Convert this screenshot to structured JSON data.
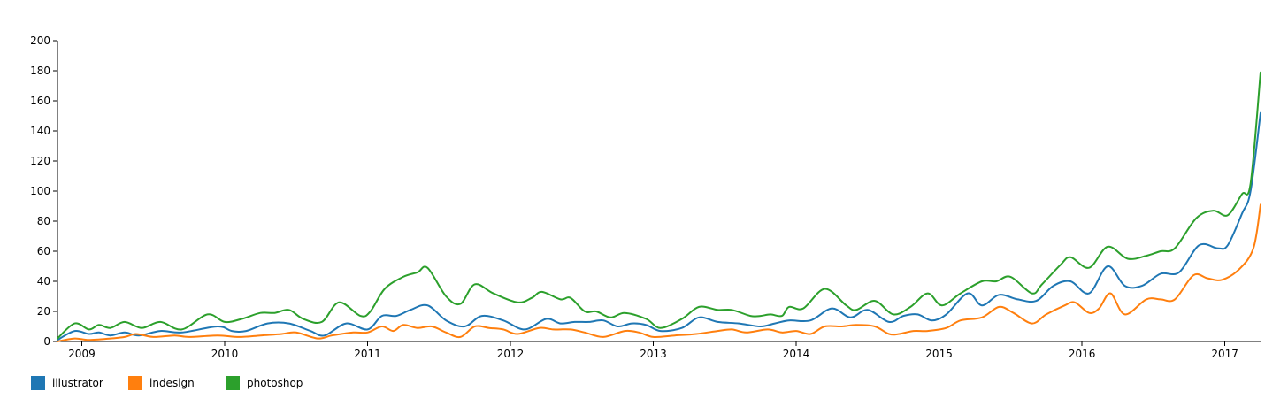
{
  "chart_data": {
    "type": "line",
    "x_unit": "year",
    "x_range": [
      2008.83,
      2017.25
    ],
    "ylim": [
      0,
      200
    ],
    "yticks": [
      0,
      20,
      40,
      60,
      80,
      100,
      120,
      140,
      160,
      180,
      200
    ],
    "xticks": [
      2009,
      2010,
      2011,
      2012,
      2013,
      2014,
      2015,
      2016,
      2017
    ],
    "xtick_labels": [
      "2009",
      "2010",
      "2011",
      "2012",
      "2013",
      "2014",
      "2015",
      "2016",
      "2017"
    ],
    "legend_position": "bottom-left",
    "grid": false,
    "series": [
      {
        "name": "illustrator",
        "color": "#1f77b4",
        "points": [
          [
            2008.83,
            1
          ],
          [
            2008.95,
            7
          ],
          [
            2009.05,
            5
          ],
          [
            2009.12,
            6
          ],
          [
            2009.2,
            4
          ],
          [
            2009.3,
            6
          ],
          [
            2009.4,
            4
          ],
          [
            2009.55,
            7
          ],
          [
            2009.7,
            6
          ],
          [
            2009.95,
            10
          ],
          [
            2010.05,
            7
          ],
          [
            2010.15,
            7
          ],
          [
            2010.3,
            12
          ],
          [
            2010.45,
            12
          ],
          [
            2010.6,
            7
          ],
          [
            2010.7,
            4
          ],
          [
            2010.85,
            12
          ],
          [
            2011.0,
            8
          ],
          [
            2011.1,
            17
          ],
          [
            2011.2,
            17
          ],
          [
            2011.3,
            21
          ],
          [
            2011.42,
            24
          ],
          [
            2011.55,
            14
          ],
          [
            2011.68,
            10
          ],
          [
            2011.8,
            17
          ],
          [
            2011.95,
            14
          ],
          [
            2012.1,
            8
          ],
          [
            2012.25,
            15
          ],
          [
            2012.35,
            12
          ],
          [
            2012.45,
            13
          ],
          [
            2012.55,
            13
          ],
          [
            2012.65,
            14
          ],
          [
            2012.75,
            10
          ],
          [
            2012.85,
            12
          ],
          [
            2012.95,
            11
          ],
          [
            2013.05,
            7
          ],
          [
            2013.2,
            9
          ],
          [
            2013.32,
            16
          ],
          [
            2013.45,
            13
          ],
          [
            2013.6,
            12
          ],
          [
            2013.75,
            10
          ],
          [
            2013.85,
            12
          ],
          [
            2013.95,
            14
          ],
          [
            2014.1,
            14
          ],
          [
            2014.25,
            22
          ],
          [
            2014.38,
            16
          ],
          [
            2014.5,
            21
          ],
          [
            2014.65,
            13
          ],
          [
            2014.75,
            17
          ],
          [
            2014.85,
            18
          ],
          [
            2014.95,
            14
          ],
          [
            2015.05,
            18
          ],
          [
            2015.2,
            32
          ],
          [
            2015.3,
            24
          ],
          [
            2015.42,
            31
          ],
          [
            2015.55,
            28
          ],
          [
            2015.68,
            27
          ],
          [
            2015.8,
            37
          ],
          [
            2015.92,
            40
          ],
          [
            2016.05,
            32
          ],
          [
            2016.18,
            50
          ],
          [
            2016.3,
            37
          ],
          [
            2016.42,
            37
          ],
          [
            2016.55,
            45
          ],
          [
            2016.68,
            46
          ],
          [
            2016.82,
            64
          ],
          [
            2016.95,
            62
          ],
          [
            2017.02,
            64
          ],
          [
            2017.12,
            85
          ],
          [
            2017.18,
            100
          ],
          [
            2017.25,
            152
          ]
        ]
      },
      {
        "name": "indesign",
        "color": "#ff7f0e",
        "points": [
          [
            2008.83,
            0
          ],
          [
            2008.95,
            2
          ],
          [
            2009.05,
            1
          ],
          [
            2009.2,
            2
          ],
          [
            2009.3,
            3
          ],
          [
            2009.38,
            5
          ],
          [
            2009.5,
            3
          ],
          [
            2009.65,
            4
          ],
          [
            2009.75,
            3
          ],
          [
            2009.95,
            4
          ],
          [
            2010.1,
            3
          ],
          [
            2010.25,
            4
          ],
          [
            2010.4,
            5
          ],
          [
            2010.5,
            6
          ],
          [
            2010.65,
            2
          ],
          [
            2010.75,
            4
          ],
          [
            2010.9,
            6
          ],
          [
            2011.0,
            6
          ],
          [
            2011.1,
            10
          ],
          [
            2011.18,
            7
          ],
          [
            2011.25,
            11
          ],
          [
            2011.35,
            9
          ],
          [
            2011.45,
            10
          ],
          [
            2011.55,
            6
          ],
          [
            2011.65,
            3
          ],
          [
            2011.75,
            10
          ],
          [
            2011.85,
            9
          ],
          [
            2011.95,
            8
          ],
          [
            2012.05,
            5
          ],
          [
            2012.2,
            9
          ],
          [
            2012.3,
            8
          ],
          [
            2012.42,
            8
          ],
          [
            2012.52,
            6
          ],
          [
            2012.65,
            3
          ],
          [
            2012.8,
            7
          ],
          [
            2012.9,
            6
          ],
          [
            2013.0,
            3
          ],
          [
            2013.15,
            4
          ],
          [
            2013.3,
            5
          ],
          [
            2013.45,
            7
          ],
          [
            2013.55,
            8
          ],
          [
            2013.65,
            6
          ],
          [
            2013.8,
            8
          ],
          [
            2013.9,
            6
          ],
          [
            2014.0,
            7
          ],
          [
            2014.1,
            5
          ],
          [
            2014.2,
            10
          ],
          [
            2014.32,
            10
          ],
          [
            2014.42,
            11
          ],
          [
            2014.55,
            10
          ],
          [
            2014.65,
            5
          ],
          [
            2014.72,
            5
          ],
          [
            2014.82,
            7
          ],
          [
            2014.92,
            7
          ],
          [
            2015.05,
            9
          ],
          [
            2015.15,
            14
          ],
          [
            2015.3,
            16
          ],
          [
            2015.42,
            23
          ],
          [
            2015.52,
            19
          ],
          [
            2015.65,
            12
          ],
          [
            2015.75,
            18
          ],
          [
            2015.88,
            24
          ],
          [
            2015.95,
            26
          ],
          [
            2016.05,
            19
          ],
          [
            2016.12,
            22
          ],
          [
            2016.2,
            32
          ],
          [
            2016.3,
            18
          ],
          [
            2016.45,
            28
          ],
          [
            2016.55,
            28
          ],
          [
            2016.65,
            28
          ],
          [
            2016.78,
            44
          ],
          [
            2016.88,
            42
          ],
          [
            2016.98,
            41
          ],
          [
            2017.1,
            48
          ],
          [
            2017.2,
            62
          ],
          [
            2017.25,
            91
          ]
        ]
      },
      {
        "name": "photoshop",
        "color": "#2ca02c",
        "points": [
          [
            2008.83,
            2
          ],
          [
            2008.95,
            12
          ],
          [
            2009.05,
            8
          ],
          [
            2009.12,
            11
          ],
          [
            2009.2,
            9
          ],
          [
            2009.3,
            13
          ],
          [
            2009.42,
            9
          ],
          [
            2009.55,
            13
          ],
          [
            2009.7,
            8
          ],
          [
            2009.88,
            18
          ],
          [
            2010.0,
            13
          ],
          [
            2010.12,
            15
          ],
          [
            2010.25,
            19
          ],
          [
            2010.35,
            19
          ],
          [
            2010.45,
            21
          ],
          [
            2010.55,
            15
          ],
          [
            2010.68,
            13
          ],
          [
            2010.8,
            26
          ],
          [
            2010.95,
            17
          ],
          [
            2011.02,
            20
          ],
          [
            2011.12,
            35
          ],
          [
            2011.25,
            43
          ],
          [
            2011.35,
            46
          ],
          [
            2011.42,
            49
          ],
          [
            2011.55,
            30
          ],
          [
            2011.65,
            25
          ],
          [
            2011.75,
            38
          ],
          [
            2011.88,
            32
          ],
          [
            2012.05,
            26
          ],
          [
            2012.15,
            29
          ],
          [
            2012.22,
            33
          ],
          [
            2012.35,
            28
          ],
          [
            2012.42,
            29
          ],
          [
            2012.52,
            20
          ],
          [
            2012.6,
            20
          ],
          [
            2012.7,
            16
          ],
          [
            2012.8,
            19
          ],
          [
            2012.95,
            15
          ],
          [
            2013.05,
            9
          ],
          [
            2013.2,
            15
          ],
          [
            2013.32,
            23
          ],
          [
            2013.45,
            21
          ],
          [
            2013.55,
            21
          ],
          [
            2013.68,
            17
          ],
          [
            2013.75,
            17
          ],
          [
            2013.82,
            18
          ],
          [
            2013.9,
            17
          ],
          [
            2013.95,
            23
          ],
          [
            2014.05,
            22
          ],
          [
            2014.2,
            35
          ],
          [
            2014.35,
            24
          ],
          [
            2014.42,
            21
          ],
          [
            2014.55,
            27
          ],
          [
            2014.68,
            18
          ],
          [
            2014.8,
            23
          ],
          [
            2014.92,
            32
          ],
          [
            2015.02,
            24
          ],
          [
            2015.15,
            32
          ],
          [
            2015.3,
            40
          ],
          [
            2015.4,
            40
          ],
          [
            2015.5,
            43
          ],
          [
            2015.65,
            32
          ],
          [
            2015.72,
            38
          ],
          [
            2015.85,
            51
          ],
          [
            2015.92,
            56
          ],
          [
            2016.05,
            49
          ],
          [
            2016.18,
            63
          ],
          [
            2016.32,
            55
          ],
          [
            2016.45,
            57
          ],
          [
            2016.55,
            60
          ],
          [
            2016.65,
            62
          ],
          [
            2016.8,
            82
          ],
          [
            2016.92,
            87
          ],
          [
            2017.02,
            84
          ],
          [
            2017.12,
            98
          ],
          [
            2017.18,
            105
          ],
          [
            2017.25,
            179
          ]
        ]
      }
    ]
  }
}
